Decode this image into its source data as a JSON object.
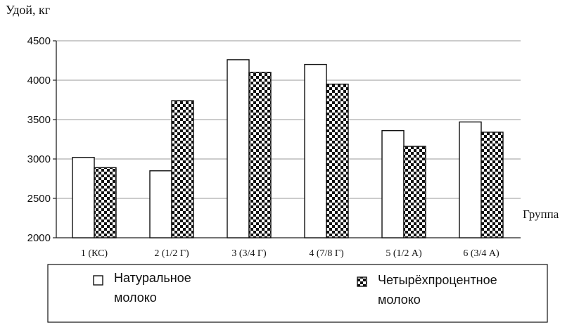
{
  "chart_data": {
    "type": "bar",
    "ylabel": "Удой, кг",
    "xlabel": "Группа",
    "ylim": [
      2000,
      4500
    ],
    "yticks": [
      2000,
      2500,
      3000,
      3500,
      4000,
      4500
    ],
    "grid": true,
    "legend_position": "bottom",
    "categories": [
      "1 (КС)",
      "2 (1/2 Г)",
      "3 (3/4 Г)",
      "4 (7/8 Г)",
      "5 (1/2 А)",
      "6 (3/4 А)"
    ],
    "series": [
      {
        "name_lines": [
          "Натуральное",
          "молоко"
        ],
        "fill": "#ffffff",
        "pattern": "none",
        "values": [
          3020,
          2850,
          4260,
          4200,
          3360,
          3470
        ]
      },
      {
        "name_lines": [
          "Четырёхпроцентное",
          "молоко"
        ],
        "fill": "#111111",
        "pattern": "checker",
        "values": [
          2890,
          3740,
          4100,
          3950,
          3160,
          3340
        ]
      }
    ]
  }
}
